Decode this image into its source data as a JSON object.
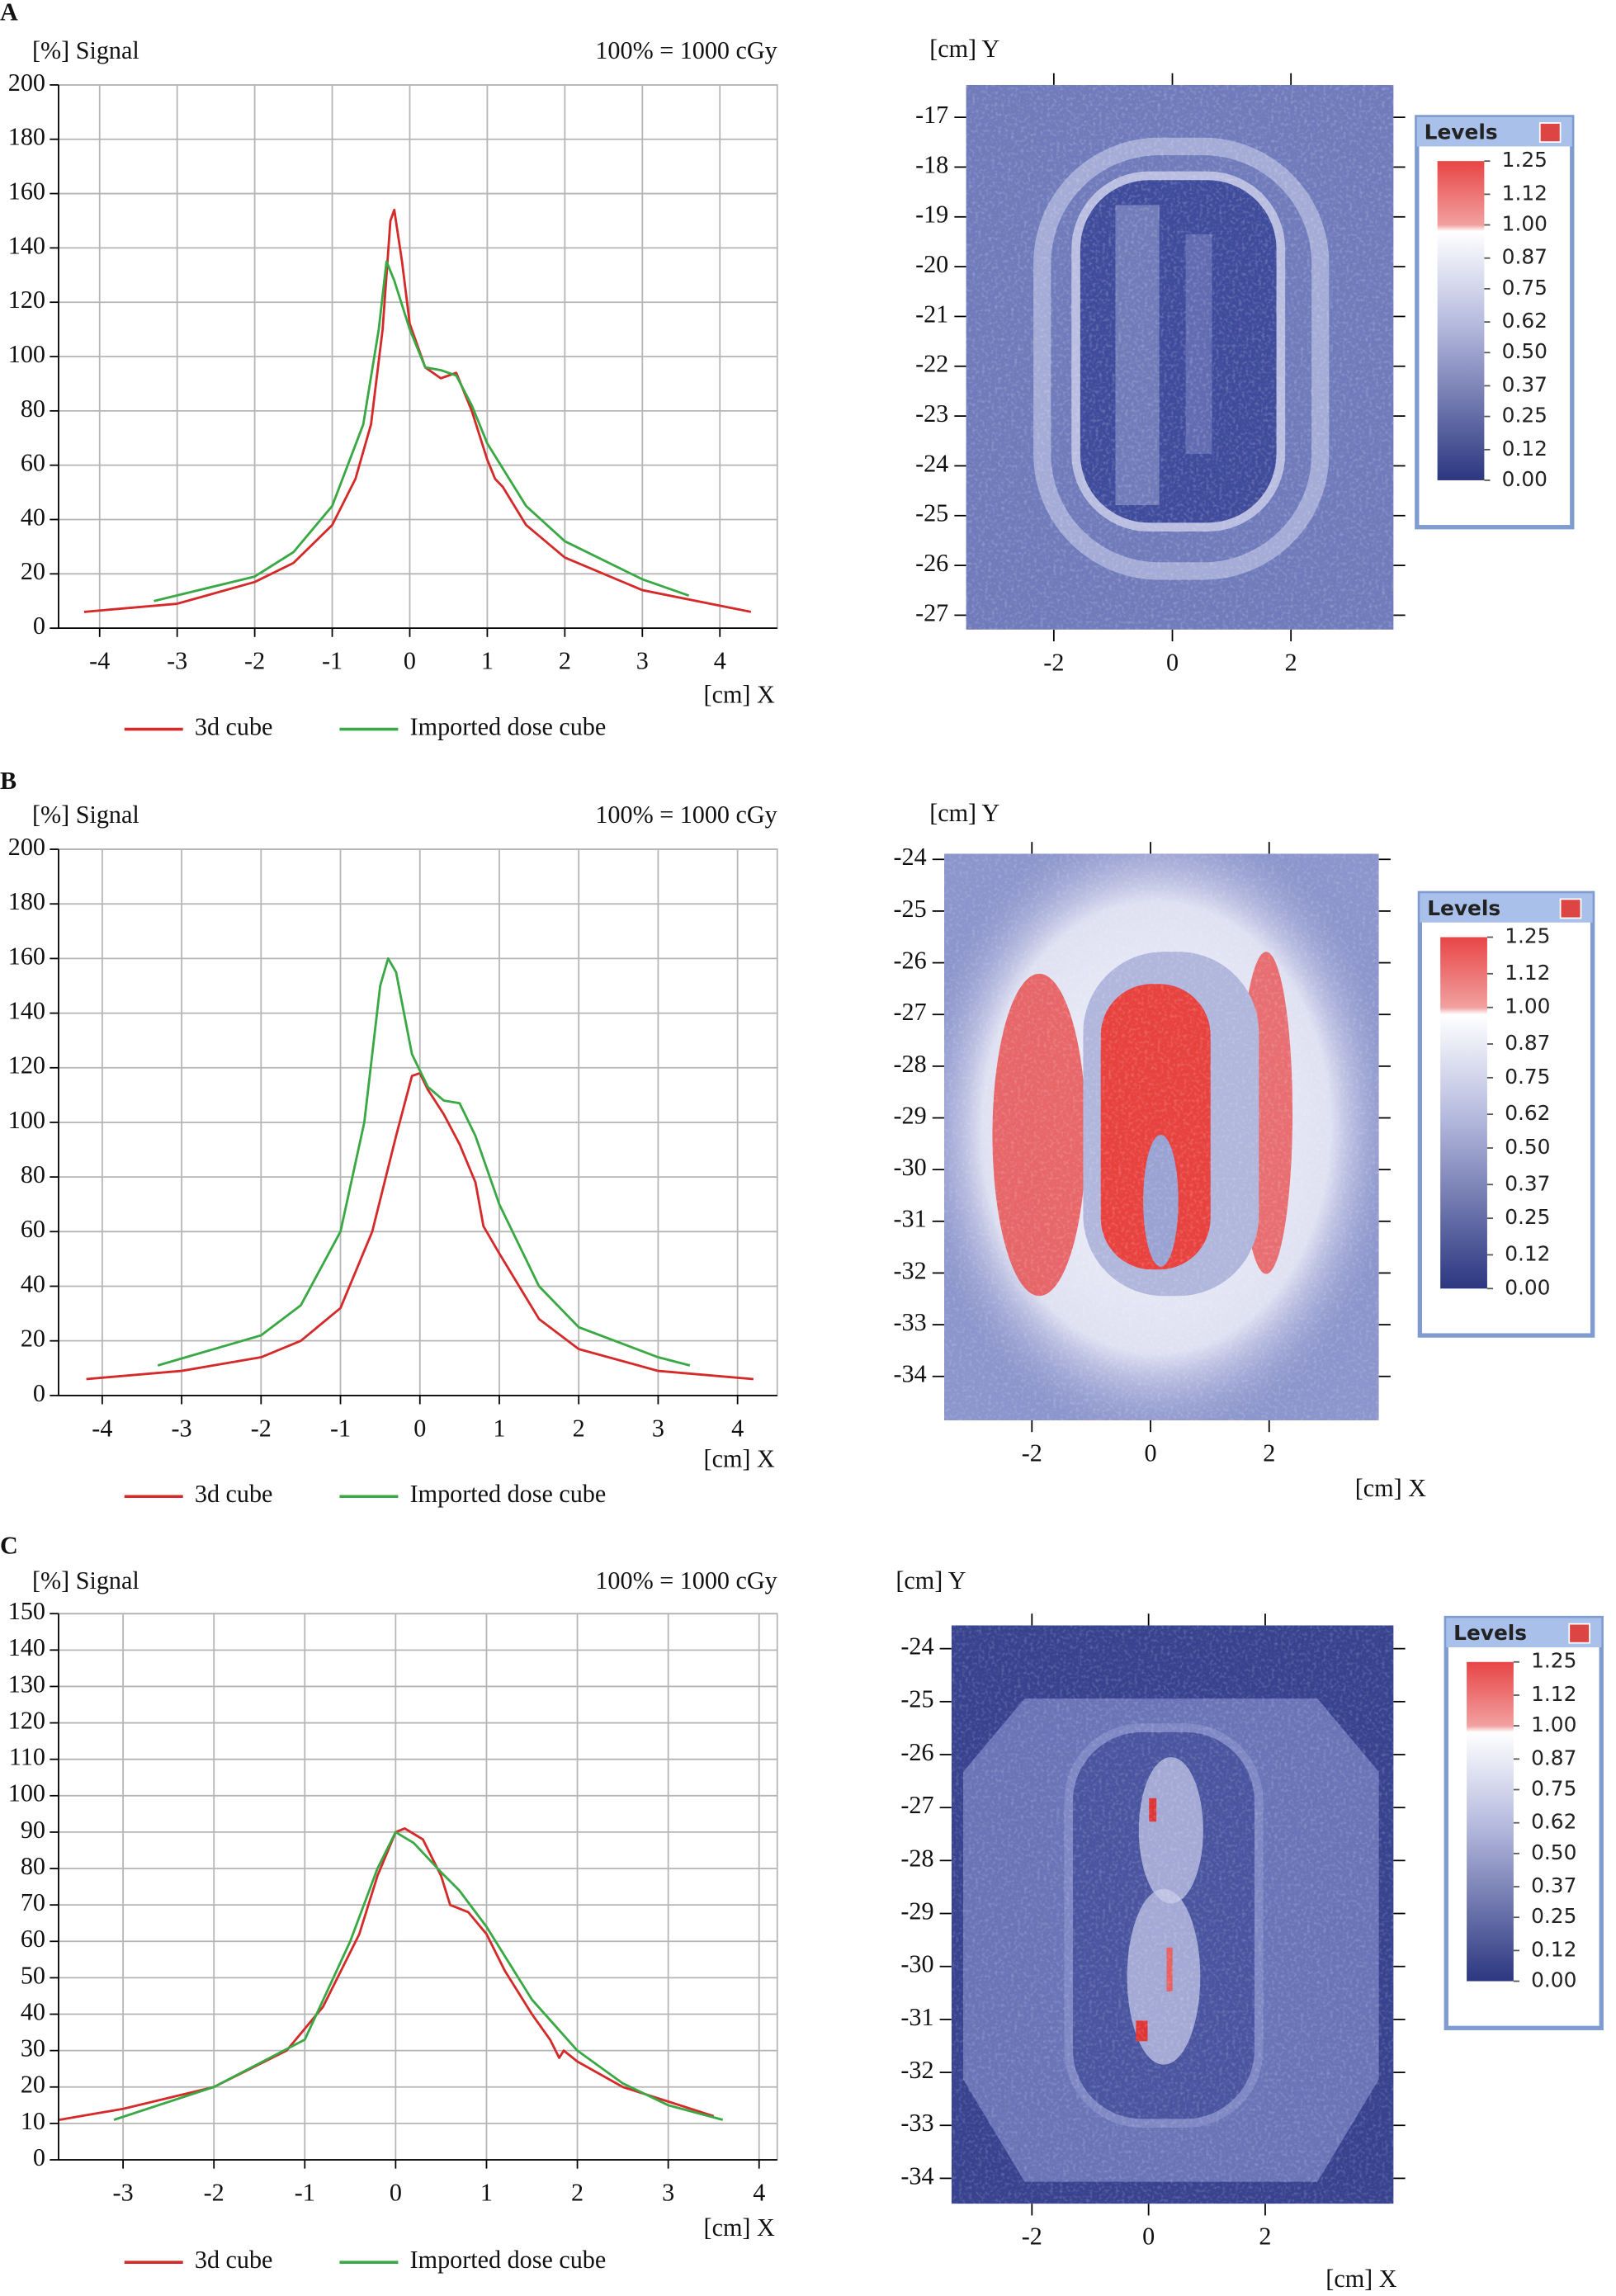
{
  "chart_data": [
    {
      "type": "line",
      "panel": "A",
      "y_label": "[%] Signal",
      "annotation": "100% = 1000 cGy",
      "x_label": "[cm] X",
      "xlim": [
        -4.53,
        4.74
      ],
      "ylim": [
        0,
        200
      ],
      "xticks": [
        -4,
        -3,
        -2,
        -1,
        0,
        1,
        2,
        3,
        4
      ],
      "yticks": [
        0,
        20,
        40,
        60,
        80,
        100,
        120,
        140,
        160,
        180,
        200
      ],
      "grid": true,
      "series": [
        {
          "name": "3d cube",
          "color": "#d42a2a",
          "x": [
            -4.2,
            -3,
            -2,
            -1.5,
            -1,
            -0.7,
            -0.5,
            -0.35,
            -0.25,
            -0.2,
            -0.1,
            0,
            0.2,
            0.4,
            0.6,
            0.8,
            1,
            1.1,
            1.2,
            1.5,
            2,
            3,
            4.4
          ],
          "values": [
            6,
            9,
            17,
            24,
            38,
            55,
            75,
            110,
            150,
            154,
            135,
            112,
            96,
            92,
            94,
            80,
            62,
            55,
            52,
            38,
            26,
            14,
            6
          ]
        },
        {
          "name": "Imported dose cube",
          "color": "#3aa845",
          "x": [
            -3.3,
            -2,
            -1.5,
            -1,
            -0.6,
            -0.4,
            -0.3,
            -0.2,
            0,
            0.2,
            0.4,
            0.6,
            0.8,
            1,
            1.5,
            2,
            3,
            3.6
          ],
          "values": [
            10,
            19,
            28,
            45,
            75,
            110,
            135,
            128,
            110,
            96,
            95,
            93,
            82,
            68,
            45,
            32,
            18,
            12
          ]
        }
      ]
    },
    {
      "type": "heatmap",
      "y_label": "[cm] Y",
      "xlim": [
        -3.48,
        3.73
      ],
      "ylim": [
        -27.29,
        -16.35
      ],
      "xticks": [
        -2,
        0,
        2
      ],
      "yticks": [
        -27,
        -26,
        -25,
        -24,
        -23,
        -22,
        -21,
        -20,
        -19,
        -18,
        -17
      ],
      "colorbar": {
        "title": "Levels",
        "ticks": [
          1.25,
          1.12,
          {
            "value": 1,
            "label": "1.00"
          },
          0.87,
          0.75,
          0.62,
          {
            "value": 0.5,
            "label": "0.50"
          },
          0.37,
          0.25,
          0.12,
          {
            "value": 0,
            "label": "0.00"
          }
        ]
      }
    },
    {
      "type": "line",
      "panel": "B",
      "y_label": "[%] Signal",
      "annotation": "100% = 1000 cGy",
      "x_label": "[cm] X",
      "xlim": [
        -4.55,
        4.5
      ],
      "ylim": [
        0,
        200
      ],
      "xticks": [
        -4,
        -3,
        -2,
        -1,
        0,
        1,
        2,
        3,
        4
      ],
      "yticks": [
        0,
        20,
        40,
        60,
        80,
        100,
        120,
        140,
        160,
        180,
        200
      ],
      "grid": true,
      "series": [
        {
          "name": "3d cube",
          "color": "#d42a2a",
          "x": [
            -4.2,
            -3,
            -2,
            -1.5,
            -1,
            -0.6,
            -0.3,
            -0.1,
            0,
            0.1,
            0.3,
            0.5,
            0.7,
            0.8,
            1,
            1.5,
            2,
            3,
            4.2
          ],
          "values": [
            6,
            9,
            14,
            20,
            32,
            60,
            95,
            117,
            118,
            112,
            103,
            92,
            78,
            62,
            52,
            28,
            17,
            9,
            6
          ]
        },
        {
          "name": "Imported dose cube",
          "color": "#3aa845",
          "x": [
            -3.3,
            -2,
            -1.5,
            -1,
            -0.7,
            -0.5,
            -0.4,
            -0.3,
            -0.1,
            0.1,
            0.3,
            0.5,
            0.7,
            1,
            1.5,
            2,
            3,
            3.4
          ],
          "values": [
            11,
            22,
            33,
            60,
            100,
            150,
            160,
            155,
            125,
            113,
            108,
            107,
            95,
            70,
            40,
            25,
            14,
            11
          ]
        }
      ]
    },
    {
      "type": "heatmap",
      "y_label": "[cm] Y",
      "x_label": "[cm] X",
      "xlim": [
        -3.48,
        3.85
      ],
      "ylim": [
        -34.85,
        -23.89
      ],
      "xticks": [
        -2,
        0,
        2
      ],
      "yticks": [
        -34,
        -33,
        -32,
        -31,
        -30,
        -29,
        -28,
        -27,
        -26,
        -25,
        -24
      ],
      "colorbar": {
        "title": "Levels",
        "ticks": [
          1.25,
          1.12,
          {
            "value": 1,
            "label": "1.00"
          },
          0.87,
          0.75,
          0.62,
          {
            "value": 0.5,
            "label": "0.50"
          },
          0.37,
          0.25,
          0.12,
          {
            "value": 0,
            "label": "0.00"
          }
        ]
      }
    },
    {
      "type": "line",
      "panel": "C",
      "y_label": "[%] Signal",
      "annotation": "100% = 1000 cGy",
      "x_label": "[cm] X",
      "xlim": [
        -3.71,
        4.2
      ],
      "ylim": [
        0,
        150
      ],
      "xticks": [
        -3,
        -2,
        -1,
        0,
        1,
        2,
        3,
        4
      ],
      "yticks": [
        0,
        10,
        20,
        30,
        40,
        50,
        60,
        70,
        80,
        90,
        100,
        110,
        120,
        130,
        140,
        150
      ],
      "grid": true,
      "series": [
        {
          "name": "3d cube",
          "color": "#d42a2a",
          "x": [
            -3.7,
            -3,
            -2,
            -1.2,
            -0.8,
            -0.4,
            -0.2,
            0,
            0.1,
            0.3,
            0.5,
            0.6,
            0.8,
            1,
            1.2,
            1.5,
            1.7,
            1.8,
            1.85,
            2,
            2.5,
            3,
            3.5
          ],
          "values": [
            11,
            14,
            20,
            30,
            42,
            62,
            78,
            90,
            91,
            88,
            78,
            70,
            68,
            62,
            52,
            40,
            33,
            28,
            30,
            27,
            20,
            16,
            12
          ]
        },
        {
          "name": "Imported dose cube",
          "color": "#3aa845",
          "x": [
            -3.1,
            -2,
            -1,
            -0.5,
            -0.2,
            0,
            0.2,
            0.5,
            0.7,
            1,
            1.5,
            2,
            2.5,
            3,
            3.6
          ],
          "values": [
            11,
            20,
            33,
            60,
            80,
            90,
            87,
            79,
            74,
            64,
            44,
            30,
            21,
            15,
            11
          ]
        }
      ]
    },
    {
      "type": "heatmap",
      "y_label": "[cm] Y",
      "x_label": "[cm] X",
      "xlim": [
        -3.38,
        4.2
      ],
      "ylim": [
        -34.48,
        -23.56
      ],
      "xticks": [
        -2,
        0,
        2
      ],
      "yticks": [
        -34,
        -33,
        -32,
        -31,
        -30,
        -29,
        -28,
        -27,
        -26,
        -25,
        -24
      ],
      "colorbar": {
        "title": "Levels",
        "ticks": [
          1.25,
          1.12,
          {
            "value": 1,
            "label": "1.00"
          },
          0.87,
          0.75,
          0.62,
          {
            "value": 0.5,
            "label": "0.50"
          },
          0.37,
          0.25,
          0.12,
          {
            "value": 0,
            "label": "0.00"
          }
        ]
      }
    }
  ]
}
